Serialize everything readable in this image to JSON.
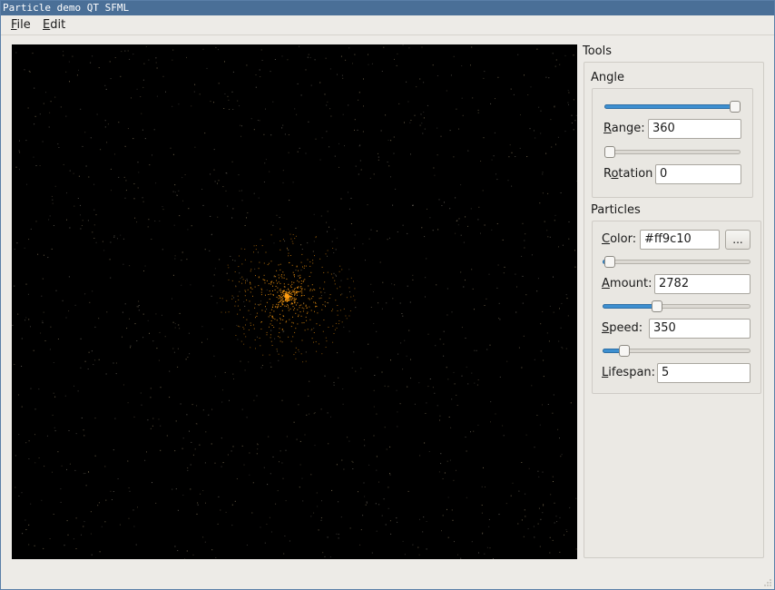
{
  "window": {
    "title": "Particle demo QT SFML"
  },
  "menu": [
    {
      "accel": "F",
      "rest": "ile"
    },
    {
      "accel": "E",
      "rest": "dit"
    }
  ],
  "tools": {
    "title": "Tools",
    "angle": {
      "title": "Angle",
      "range_slider_level": 1.0,
      "range_label_accel": "R",
      "range_label_rest": "ange:",
      "range_value": "360",
      "rotation_slider_level": 0.0,
      "rotation_label_accel": "o",
      "rotation_label_pre": "R",
      "rotation_label_rest": "tation",
      "rotation_value": "0"
    },
    "particles": {
      "title": "Particles",
      "color_label_accel": "C",
      "color_label_rest": "olor:",
      "color_value": "#ff9c10",
      "color_button": "...",
      "amount_slider_level": 0.01,
      "amount_label_accel": "A",
      "amount_label_rest": "mount:",
      "amount_value": "2782",
      "speed_slider_level": 0.36,
      "speed_label_accel": "S",
      "speed_label_rest": "peed:",
      "speed_value": "350",
      "lifespan_slider_level": 0.12,
      "lifespan_label_accel": "L",
      "lifespan_label_rest": "ifespan:",
      "lifespan_value": "5"
    }
  },
  "colors": {
    "accent": "#3d8fd0",
    "particle": "#ff9c10",
    "canvas_bg": "#000000",
    "titlebar": "#4a6f97"
  }
}
